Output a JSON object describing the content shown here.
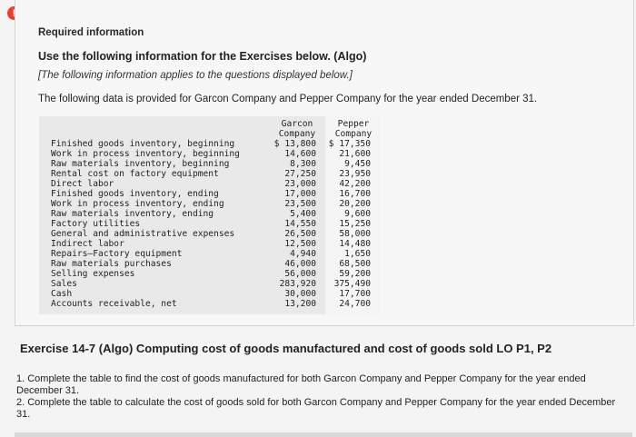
{
  "alert_icon": "!",
  "required_info": "Required information",
  "use_following": "Use the following information for the Exercises below. (Algo)",
  "applies_note": "[The following information applies to the questions displayed below.]",
  "data_provided": "The following data is provided for Garcon Company and Pepper Company for the year ended December 31.",
  "table": {
    "garcon_header_1": "Garcon",
    "garcon_header_2": "Company",
    "pepper_header_1": "Pepper",
    "pepper_header_2": "Company",
    "rows": [
      {
        "label": "Finished goods inventory, beginning",
        "garcon": "$ 13,800",
        "pepper": "$ 17,350"
      },
      {
        "label": "Work in process inventory, beginning",
        "garcon": "14,600",
        "pepper": "21,600"
      },
      {
        "label": "Raw materials inventory, beginning",
        "garcon": "8,300",
        "pepper": "9,450"
      },
      {
        "label": "Rental cost on factory equipment",
        "garcon": "27,250",
        "pepper": "23,950"
      },
      {
        "label": "Direct labor",
        "garcon": "23,000",
        "pepper": "42,200"
      },
      {
        "label": "Finished goods inventory, ending",
        "garcon": "17,000",
        "pepper": "16,700"
      },
      {
        "label": "Work in process inventory, ending",
        "garcon": "23,500",
        "pepper": "20,200"
      },
      {
        "label": "Raw materials inventory, ending",
        "garcon": "5,400",
        "pepper": "9,600"
      },
      {
        "label": "Factory utilities",
        "garcon": "14,550",
        "pepper": "15,250"
      },
      {
        "label": "General and administrative expenses",
        "garcon": "26,500",
        "pepper": "58,000"
      },
      {
        "label": "Indirect labor",
        "garcon": "12,500",
        "pepper": "14,480"
      },
      {
        "label": "Repairs—Factory equipment",
        "garcon": "4,940",
        "pepper": "1,650"
      },
      {
        "label": "Raw materials purchases",
        "garcon": "46,000",
        "pepper": "68,500"
      },
      {
        "label": "Selling expenses",
        "garcon": "56,000",
        "pepper": "59,200"
      },
      {
        "label": "Sales",
        "garcon": "283,920",
        "pepper": "375,490"
      },
      {
        "label": "Cash",
        "garcon": "30,000",
        "pepper": "17,700"
      },
      {
        "label": "Accounts receivable, net",
        "garcon": "13,200",
        "pepper": "24,700"
      }
    ]
  },
  "exercise_title": "Exercise 14-7 (Algo) Computing cost of goods manufactured and cost of goods sold LO P1, P2",
  "instruction_1": "1. Complete the table to find the cost of goods manufactured for both Garcon Company and Pepper Company for the year ended December 31.",
  "instruction_2": "2. Complete the table to calculate the cost of goods sold for both Garcon Company and Pepper Company for the year ended December 31."
}
